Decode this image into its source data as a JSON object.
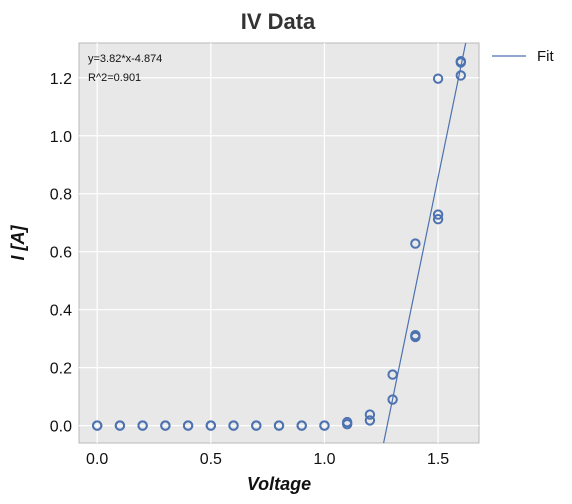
{
  "chart_data": {
    "type": "scatter",
    "title": "IV Data",
    "xlabel": "Voltage",
    "ylabel": "I [A]",
    "xlim": [
      -0.08,
      1.68
    ],
    "ylim": [
      -0.06,
      1.32
    ],
    "xticks": [
      0.0,
      0.5,
      1.0,
      1.5
    ],
    "yticks": [
      0.0,
      0.2,
      0.4,
      0.6,
      0.8,
      1.0,
      1.2
    ],
    "xtick_labels": [
      "0.0",
      "0.5",
      "1.0",
      "1.5"
    ],
    "ytick_labels": [
      "0.0",
      "0.2",
      "0.4",
      "0.6",
      "0.8",
      "1.0",
      "1.2"
    ],
    "grid": true,
    "legend": {
      "placement": "outside-right",
      "entries": [
        "Fit"
      ]
    },
    "annotations": [
      "y=3.82*x-4.874",
      "R^2=0.901"
    ],
    "series": [
      {
        "type": "scatter",
        "marker": "open-circle",
        "color": "#4c72b0",
        "x": [
          0.0,
          0.0,
          0.1,
          0.1,
          0.2,
          0.2,
          0.3,
          0.3,
          0.4,
          0.4,
          0.5,
          0.5,
          0.6,
          0.6,
          0.7,
          0.7,
          0.8,
          0.8,
          0.9,
          0.9,
          1.0,
          1.0,
          1.1,
          1.1,
          1.2,
          1.2,
          1.3,
          1.3,
          1.4,
          1.4,
          1.4,
          1.5,
          1.5,
          1.5,
          1.6,
          1.6,
          1.6
        ],
        "y": [
          0.0,
          0.0,
          0.0,
          0.0,
          0.0,
          0.0,
          0.0,
          0.0,
          0.0,
          0.0,
          0.0,
          0.0,
          0.0,
          0.0,
          0.0,
          0.0,
          0.0,
          0.0,
          0.0,
          0.0,
          0.0,
          0.0,
          0.005,
          0.012,
          0.018,
          0.038,
          0.09,
          0.176,
          0.306,
          0.312,
          0.628,
          0.712,
          0.728,
          1.197,
          1.208,
          1.253,
          1.257
        ]
      },
      {
        "name": "Fit",
        "type": "line",
        "color": "#4c72b0",
        "slope": 3.82,
        "intercept": -4.874
      }
    ]
  }
}
